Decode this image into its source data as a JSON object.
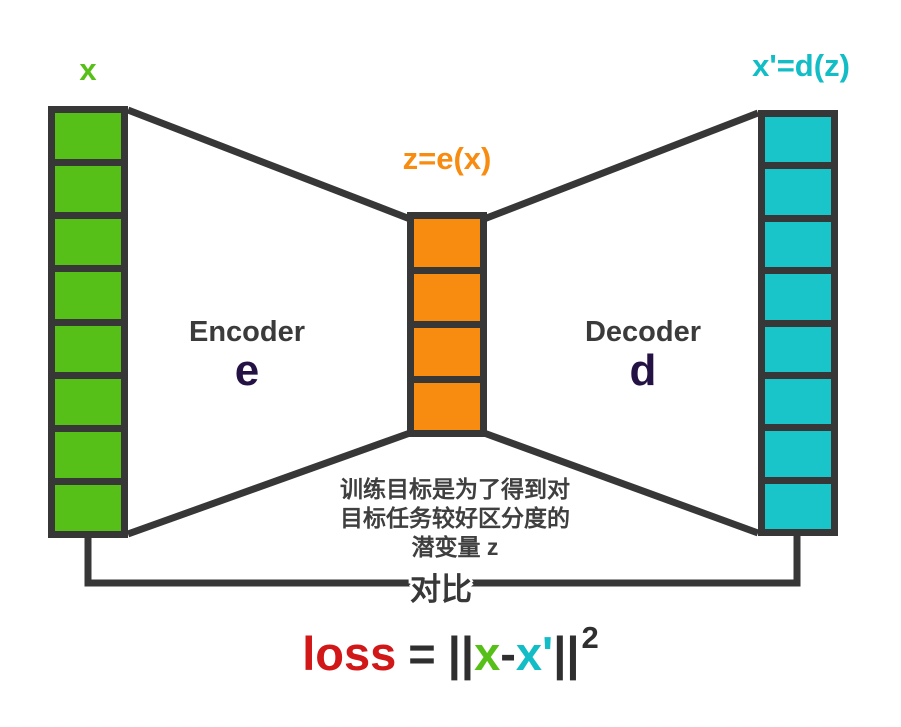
{
  "diagram": {
    "labels": {
      "input": "x",
      "latent": "z=e(x)",
      "output": "x'=d(z)",
      "encoder_name": "Encoder",
      "encoder_symbol": "e",
      "decoder_name": "Decoder",
      "decoder_symbol": "d",
      "compare": "对比"
    },
    "note": {
      "line1": "训练目标是为了得到对",
      "line2": "目标任务较好区分度的",
      "line3": "潜变量 z"
    },
    "stacks": {
      "input": {
        "blocks": 8
      },
      "latent": {
        "blocks": 4
      },
      "output": {
        "blocks": 8
      }
    },
    "formula": {
      "loss": "loss",
      "equals": "=",
      "open_norm": "||",
      "x": "x",
      "minus": "-",
      "x_prime": "x'",
      "close_norm": "||",
      "exponent": "2"
    }
  },
  "colors": {
    "green": "#57c018",
    "orange": "#f88c10",
    "cyan": "#1ac5c9",
    "cyan-text": "#12bdc6",
    "red": "#d11717",
    "dark": "#373737",
    "purple": "#241245"
  }
}
